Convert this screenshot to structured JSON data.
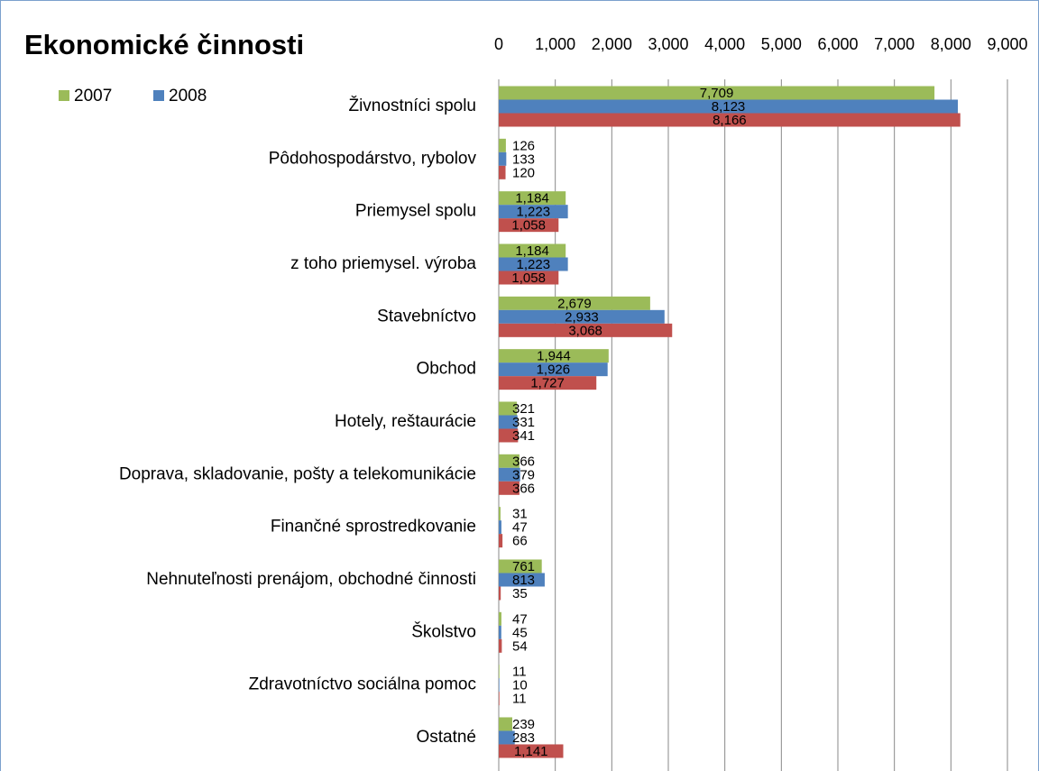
{
  "chart_data": {
    "type": "bar",
    "orientation": "horizontal",
    "title": "Ekonomické činnosti",
    "categories": [
      "Živnostníci spolu",
      "Pôdohospodárstvo, rybolov",
      "Priemysel spolu",
      "z toho priemysel. výroba",
      "Stavebníctvo",
      "Obchod",
      "Hotely, reštaurácie",
      "Doprava, skladovanie, pošty a telekomunikácie",
      "Finančné sprostredkovanie",
      "Nehnuteľnosti prenájom, obchodné činnosti",
      "Školstvo",
      "Zdravotníctvo sociálna pomoc",
      "Ostatné"
    ],
    "series": [
      {
        "name": "2007",
        "color": "#9bbb59",
        "values": [
          7709,
          126,
          1184,
          1184,
          2679,
          1944,
          321,
          366,
          31,
          761,
          47,
          11,
          239
        ],
        "value_labels": [
          "7,709",
          "126",
          "1,184",
          "1,184",
          "2,679",
          "1,944",
          "321",
          "366",
          "31",
          "761",
          "47",
          "11",
          "239"
        ]
      },
      {
        "name": "2008",
        "color": "#4f81bd",
        "values": [
          8123,
          133,
          1223,
          1223,
          2933,
          1926,
          331,
          379,
          47,
          813,
          45,
          10,
          283
        ],
        "value_labels": [
          "8,123",
          "133",
          "1,223",
          "1,223",
          "2,933",
          "1,926",
          "331",
          "379",
          "47",
          "813",
          "45",
          "10",
          "283"
        ]
      },
      {
        "color": "#c0504d",
        "values": [
          8166,
          120,
          1058,
          1058,
          3068,
          1727,
          341,
          366,
          66,
          35,
          54,
          11,
          1141
        ],
        "value_labels": [
          "8,166",
          "120",
          "1,058",
          "1,058",
          "3,068",
          "1,727",
          "341",
          "366",
          "66",
          "35",
          "54",
          "11",
          "1,141"
        ]
      }
    ],
    "xlim": [
      0,
      9000
    ],
    "xticks": [
      0,
      {
        "value": 1000,
        "label": "1,000"
      },
      {
        "value": 2000,
        "label": "2,000"
      },
      {
        "value": 3000,
        "label": "3,000"
      },
      {
        "value": 4000,
        "label": "4,000"
      },
      {
        "value": 5000,
        "label": "5,000"
      },
      {
        "value": 6000,
        "label": "6,000"
      },
      {
        "value": 7000,
        "label": "7,000"
      },
      {
        "value": 8000,
        "label": "8,000"
      },
      {
        "value": 9000,
        "label": "9,000"
      }
    ],
    "grid": true,
    "legend": "top-left"
  }
}
